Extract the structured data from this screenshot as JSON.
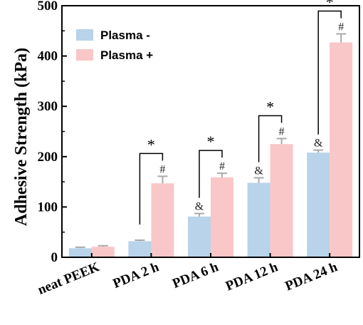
{
  "chart_data": {
    "type": "bar",
    "categories": [
      "neat PEEK",
      "PDA 2 h",
      "PDA 6 h",
      "PDA 12 h",
      "PDA 24 h"
    ],
    "series": [
      {
        "name": "Plasma -",
        "color": "#b8d3ea",
        "values": [
          18,
          32,
          81,
          148,
          208
        ],
        "errors": [
          2,
          2,
          6,
          10,
          5
        ],
        "marks": [
          "",
          "",
          "&",
          "&",
          "&"
        ]
      },
      {
        "name": "Plasma +",
        "color": "#f9c7c8",
        "values": [
          21,
          147,
          159,
          225,
          427
        ],
        "errors": [
          2,
          14,
          8,
          11,
          17
        ],
        "marks": [
          "",
          "#",
          "#",
          "#",
          "#"
        ]
      }
    ],
    "significance": [
      "",
      "*",
      "*",
      "*",
      "*"
    ],
    "ylabel": "Adhesive Strength (kPa)",
    "xlabel": "",
    "ylim": [
      0,
      500
    ],
    "yticks": [
      "0",
      "100",
      "200",
      "300",
      "400",
      "500"
    ],
    "legend_position": "top-left",
    "grid": false
  }
}
